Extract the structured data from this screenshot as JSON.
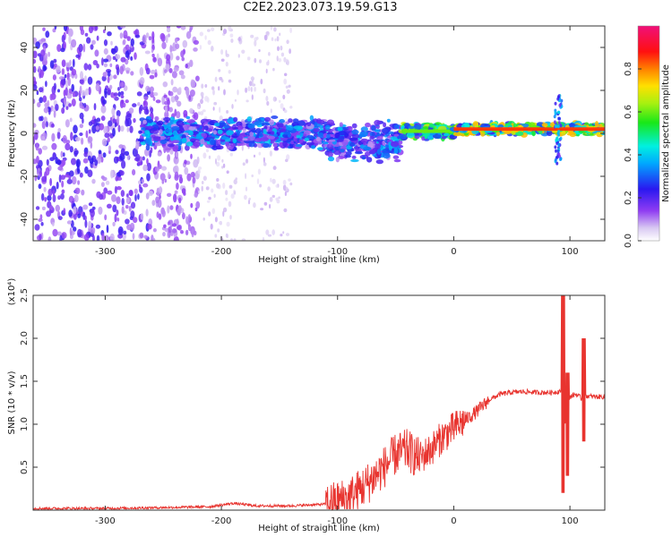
{
  "title": "C2E2.2023.073.19.59.G13",
  "chart_data": [
    {
      "type": "heatmap",
      "xlabel": "Height of straight line (km)",
      "ylabel": "Frequency (Hz)",
      "xlim": [
        -362,
        130
      ],
      "ylim": [
        -50,
        50
      ],
      "xticks": [
        -300,
        -200,
        -100,
        0,
        100
      ],
      "yticks": [
        -40,
        -20,
        0,
        20,
        40
      ],
      "colorbar": {
        "label": "Normalized spectral amplitude",
        "range": [
          0.0,
          1.0
        ],
        "ticks": [
          0.0,
          0.2,
          0.4,
          0.6,
          0.8
        ],
        "colormap": "rainbow (white, purple, blue, cyan, green, yellow, orange, red, magenta)"
      },
      "features": [
        {
          "segment": "noise",
          "x_range": [
            -362,
            -220
          ],
          "freq_range": [
            -50,
            50
          ],
          "amplitude": 0.15
        },
        {
          "segment": "sparse noise",
          "x_range": [
            -220,
            -140
          ],
          "freq_range": [
            -50,
            50
          ],
          "amplitude": 0.05
        },
        {
          "segment": "band",
          "x_range": [
            -270,
            -110
          ],
          "center_freq": 0,
          "half_width": 8,
          "amplitude": 0.35
        },
        {
          "segment": "band",
          "x_range": [
            -110,
            -45
          ],
          "center_freq": -4,
          "half_width": 10,
          "amplitude": 0.35
        },
        {
          "segment": "band",
          "x_range": [
            -45,
            0
          ],
          "center_freq": 1,
          "half_width": 4,
          "amplitude": 0.6
        },
        {
          "segment": "band",
          "x_range": [
            0,
            130
          ],
          "center_freq": 2,
          "half_width": 3,
          "amplitude": 0.85
        },
        {
          "segment": "spike",
          "x": 90,
          "freq_range": [
            -15,
            18
          ],
          "amplitude": 0.3
        }
      ]
    },
    {
      "type": "line",
      "xlabel": "Height of straight line (km)",
      "ylabel": "SNR (10 * v/v)",
      "y_multiplier": "(x10⁴)",
      "xlim": [
        -362,
        130
      ],
      "ylim": [
        0,
        2.5
      ],
      "xticks": [
        -300,
        -200,
        -100,
        0,
        100
      ],
      "yticks": [
        0.5,
        1.0,
        1.5,
        2.0,
        2.5
      ],
      "series": [
        {
          "color": "#e8342f",
          "x": [
            -362,
            -300,
            -250,
            -210,
            -190,
            -170,
            -140,
            -110,
            -100,
            -90,
            -75,
            -60,
            -50,
            -40,
            -30,
            -20,
            -10,
            0,
            10,
            20,
            30,
            40,
            50,
            60,
            70,
            80,
            85,
            90,
            93,
            96,
            100,
            105,
            110,
            115,
            120,
            130
          ],
          "values": [
            0.02,
            0.02,
            0.03,
            0.04,
            0.08,
            0.05,
            0.05,
            0.07,
            0.1,
            0.15,
            0.3,
            0.5,
            0.65,
            0.7,
            0.6,
            0.7,
            0.85,
            0.95,
            1.05,
            1.15,
            1.28,
            1.35,
            1.37,
            1.38,
            1.37,
            1.37,
            1.37,
            1.38,
            1.4,
            1.0,
            1.32,
            1.35,
            1.3,
            1.33,
            1.32,
            1.32
          ]
        }
      ],
      "spikes": [
        {
          "x": 94,
          "max": 2.5,
          "min": 0.2
        },
        {
          "x": 98,
          "max": 1.6,
          "min": 0.4
        },
        {
          "x": 112,
          "max": 2.0,
          "min": 0.8
        }
      ]
    }
  ]
}
